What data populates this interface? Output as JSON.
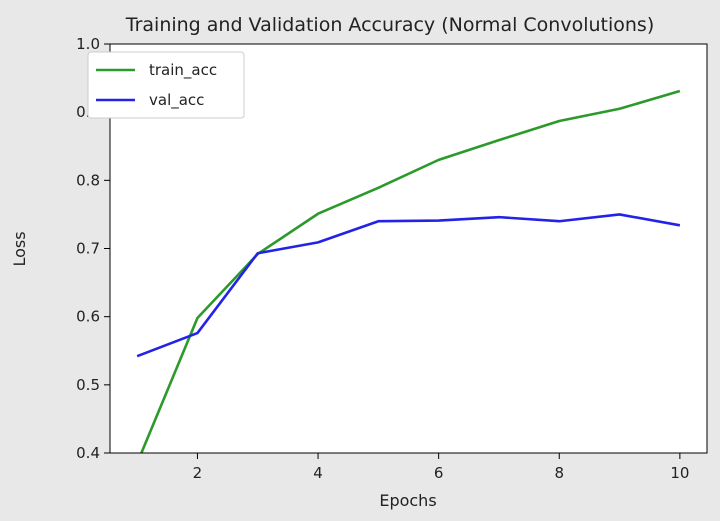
{
  "chart_data": {
    "type": "line",
    "title": "Training and Validation Accuracy (Normal Convolutions)",
    "xlabel": "Epochs",
    "ylabel": "Loss",
    "xlim": [
      0.55,
      10.45
    ],
    "ylim": [
      0.4,
      1.0
    ],
    "xticks": [
      2,
      4,
      6,
      8,
      10
    ],
    "yticks": [
      0.4,
      0.5,
      0.6,
      0.7,
      0.8,
      0.9,
      1.0
    ],
    "grid": false,
    "legend_position": "upper-left",
    "x": [
      1,
      2,
      3,
      4,
      5,
      6,
      7,
      8,
      9,
      10
    ],
    "series": [
      {
        "name": "train_acc",
        "color": "#2b9a2b",
        "values": [
          0.385,
          0.598,
          0.692,
          0.751,
          0.789,
          0.83,
          0.859,
          0.887,
          0.905,
          0.931
        ]
      },
      {
        "name": "val_acc",
        "color": "#2323e8",
        "values": [
          0.542,
          0.576,
          0.693,
          0.709,
          0.74,
          0.741,
          0.746,
          0.74,
          0.75,
          0.734
        ]
      }
    ]
  }
}
